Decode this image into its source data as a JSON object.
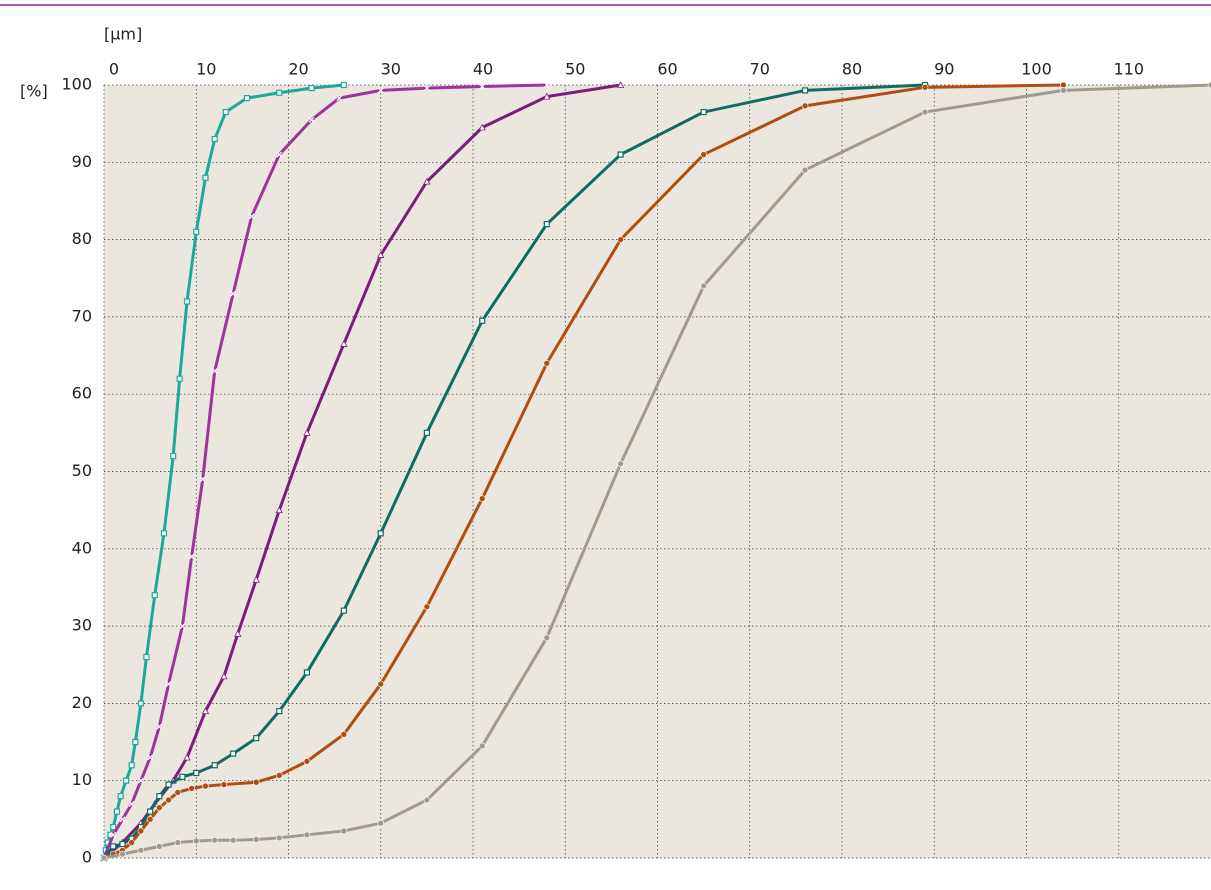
{
  "chart_data": {
    "type": "line",
    "x_label": "[μm]",
    "y_label": "[%]",
    "xlim": [
      0,
      120
    ],
    "xticks": [
      0,
      10,
      20,
      30,
      40,
      50,
      60,
      70,
      80,
      90,
      100,
      110
    ],
    "ylim": [
      0,
      100
    ],
    "yticks": [
      0,
      10,
      20,
      30,
      40,
      50,
      60,
      70,
      80,
      90,
      100
    ],
    "grid": true,
    "background": "#ece7de",
    "rule_color": "#a3207e",
    "series": [
      {
        "color": "#1aa99a",
        "marker": "square",
        "x": [
          0,
          0.2,
          0.4,
          0.7,
          1,
          1.4,
          1.8,
          2.4,
          3,
          3.4,
          4,
          4.6,
          5.5,
          6.5,
          7.5,
          8.2,
          9,
          10,
          11,
          12,
          13.2,
          15.5,
          19,
          22.5,
          26
        ],
        "values": [
          0,
          1,
          2,
          3,
          4,
          6,
          8,
          10,
          12,
          15,
          20,
          26,
          34,
          42,
          52,
          62,
          72,
          81,
          88,
          93,
          96.5,
          98.3,
          99,
          99.6,
          100
        ]
      },
      {
        "color": "#a0329c",
        "marker": "cross",
        "x": [
          0,
          1,
          2,
          3,
          4,
          5,
          6,
          7,
          8.5,
          9.5,
          10.7,
          12,
          14,
          16,
          19,
          22.5,
          25.5,
          30,
          35,
          41,
          48
        ],
        "values": [
          0,
          3,
          5,
          7,
          10,
          13,
          17,
          22.5,
          30,
          39,
          49,
          63,
          73,
          83,
          91,
          95.5,
          98.3,
          99.3,
          99.6,
          99.8,
          100
        ]
      },
      {
        "color": "#7b1e7a",
        "marker": "triangle",
        "x": [
          0,
          2,
          4,
          5.5,
          7.5,
          9,
          11,
          13,
          14.5,
          16.5,
          19,
          22,
          26,
          30,
          35,
          41,
          48,
          56
        ],
        "values": [
          0,
          2,
          4.5,
          7,
          10,
          13,
          19,
          23.5,
          29,
          36,
          45,
          55,
          66.5,
          78,
          87.5,
          94.5,
          98.5,
          100
        ]
      },
      {
        "color": "#0f6b63",
        "marker": "square",
        "x": [
          0,
          1,
          2,
          3,
          4,
          5,
          6,
          7,
          8.5,
          10,
          12,
          14,
          16.5,
          19,
          22,
          26,
          30,
          35,
          41,
          48,
          56,
          65,
          76,
          89
        ],
        "values": [
          0,
          1.5,
          1.8,
          2.5,
          4,
          6,
          8,
          9.5,
          10.5,
          11,
          12,
          13.5,
          15.5,
          19,
          24,
          32,
          42,
          55,
          69.5,
          82,
          91,
          96.5,
          99.3,
          100
        ]
      },
      {
        "color": "#b04e12",
        "marker": "circle",
        "x": [
          0,
          1,
          2,
          3,
          4,
          5,
          6,
          7,
          8,
          9.5,
          11,
          13,
          16.5,
          19,
          22,
          26,
          30,
          35,
          41,
          48,
          56,
          65,
          76,
          89,
          104
        ],
        "values": [
          0,
          0.5,
          1,
          2,
          3.5,
          5,
          6.5,
          7.5,
          8.5,
          9,
          9.3,
          9.5,
          9.8,
          10.7,
          12.5,
          16,
          22.5,
          32.5,
          46.5,
          64,
          80,
          91,
          97.3,
          99.7,
          100
        ]
      },
      {
        "color": "#a39a8e",
        "marker": "circle",
        "x": [
          0,
          2,
          4,
          6,
          8,
          10,
          12,
          14,
          16.5,
          19,
          22,
          26,
          30,
          35,
          41,
          48,
          56,
          65,
          76,
          89,
          104,
          120
        ],
        "values": [
          0,
          0.5,
          1,
          1.5,
          2,
          2.2,
          2.3,
          2.3,
          2.4,
          2.6,
          3,
          3.5,
          4.5,
          7.5,
          14.5,
          28.5,
          51,
          74,
          89,
          96.5,
          99.3,
          100
        ]
      }
    ]
  }
}
